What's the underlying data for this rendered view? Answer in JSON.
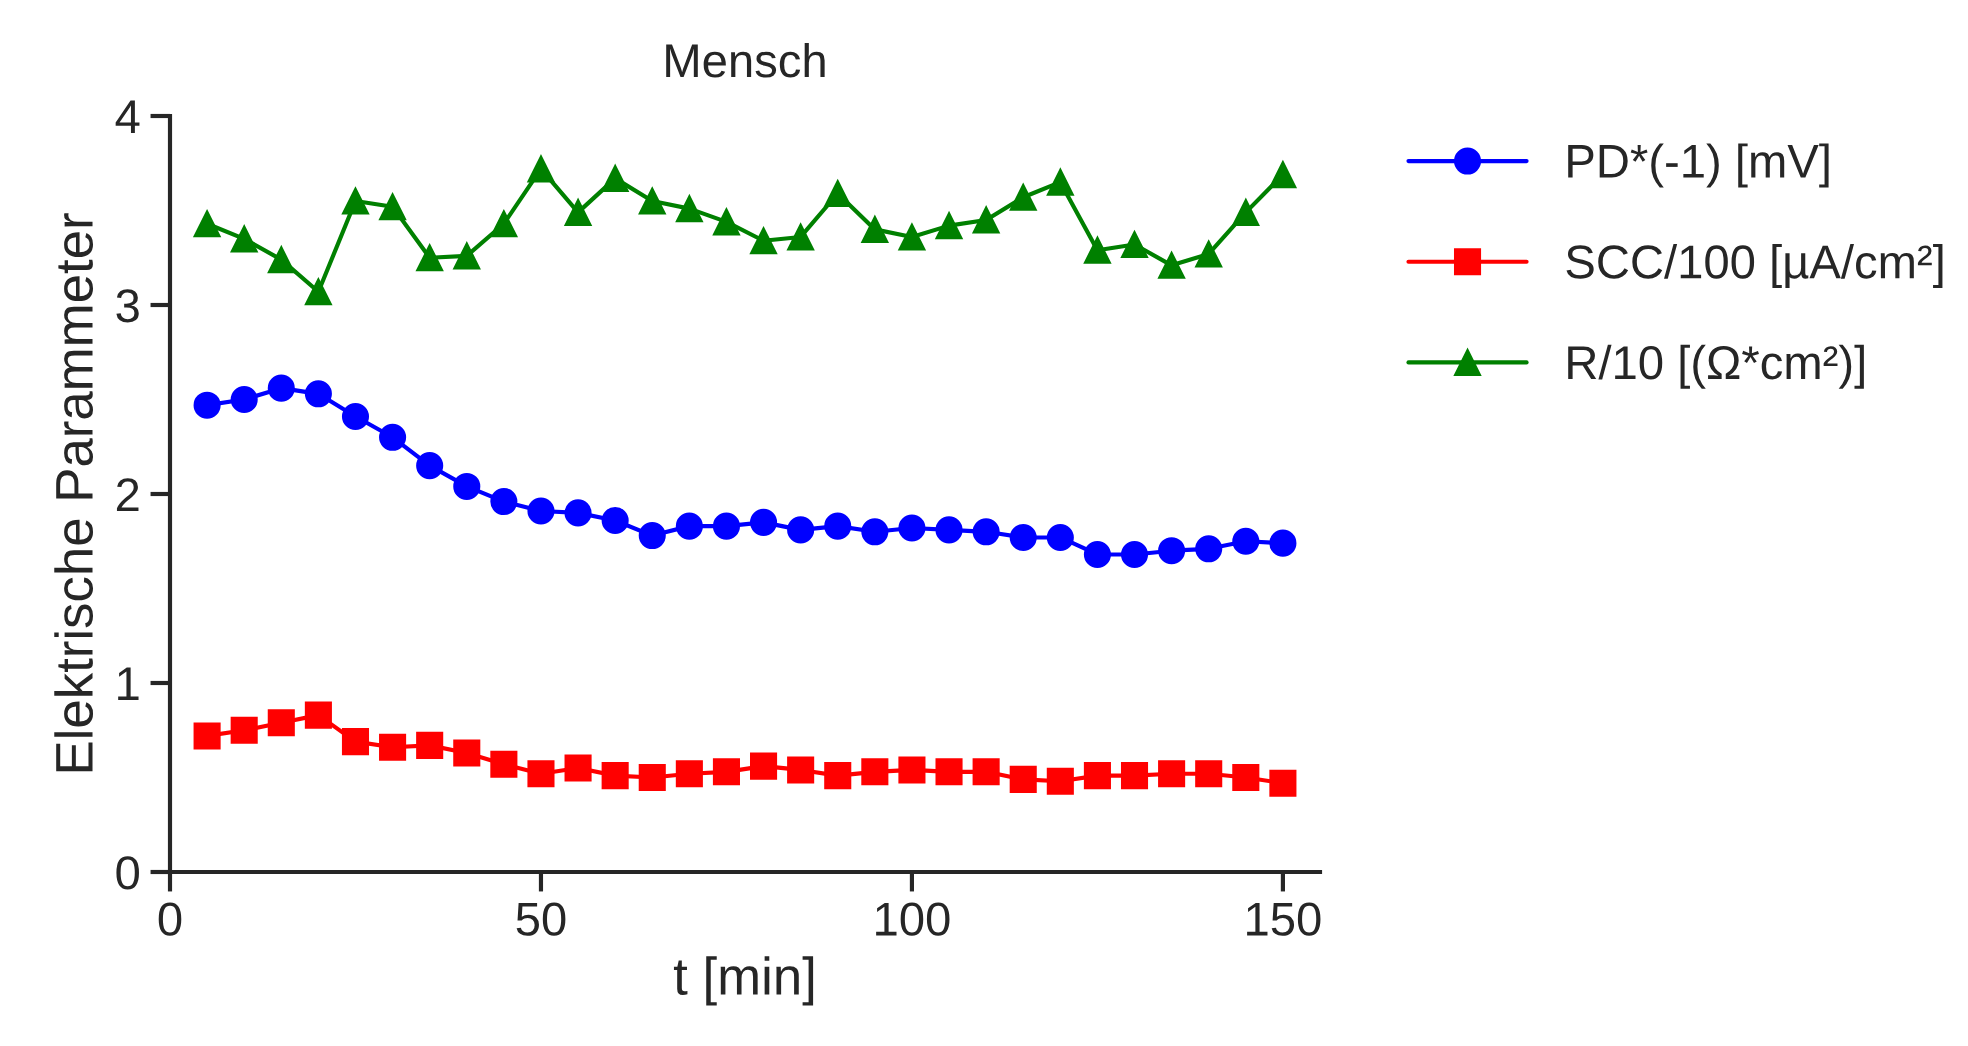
{
  "chart_data": {
    "type": "line",
    "title": "Mensch",
    "xlabel": "t [min]",
    "ylabel": "Elektrische Parammeter",
    "x": [
      5,
      10,
      15,
      20,
      25,
      30,
      35,
      40,
      45,
      50,
      55,
      60,
      65,
      70,
      75,
      80,
      85,
      90,
      95,
      100,
      105,
      110,
      115,
      120,
      125,
      130,
      135,
      140,
      145,
      150
    ],
    "series": [
      {
        "name": "PD*(-1) [mV]",
        "color": "#0000ff",
        "marker": "circle",
        "values": [
          2.47,
          2.5,
          2.56,
          2.53,
          2.41,
          2.3,
          2.15,
          2.04,
          1.96,
          1.91,
          1.9,
          1.86,
          1.78,
          1.83,
          1.83,
          1.85,
          1.81,
          1.83,
          1.8,
          1.82,
          1.81,
          1.8,
          1.77,
          1.77,
          1.68,
          1.68,
          1.7,
          1.71,
          1.75,
          1.74
        ]
      },
      {
        "name": "SCC/100 [µA/cm²]",
        "color": "#ff0000",
        "marker": "square",
        "values": [
          0.72,
          0.75,
          0.79,
          0.83,
          0.69,
          0.66,
          0.67,
          0.63,
          0.57,
          0.52,
          0.55,
          0.51,
          0.5,
          0.52,
          0.53,
          0.56,
          0.54,
          0.51,
          0.53,
          0.54,
          0.53,
          0.53,
          0.49,
          0.48,
          0.51,
          0.51,
          0.52,
          0.52,
          0.5,
          0.47
        ]
      },
      {
        "name": "R/10 [(Ω*cm²)]",
        "color": "#008000",
        "marker": "triangle",
        "values": [
          3.43,
          3.35,
          3.24,
          3.07,
          3.55,
          3.52,
          3.25,
          3.26,
          3.43,
          3.72,
          3.49,
          3.67,
          3.55,
          3.51,
          3.44,
          3.34,
          3.36,
          3.59,
          3.4,
          3.36,
          3.42,
          3.45,
          3.57,
          3.65,
          3.29,
          3.32,
          3.21,
          3.27,
          3.49,
          3.69
        ]
      }
    ],
    "xlim": [
      0,
      155
    ],
    "xticks": [
      0,
      50,
      100,
      150
    ],
    "ylim": [
      0,
      4
    ],
    "yticks": [
      0,
      1,
      2,
      3,
      4
    ],
    "grid": false,
    "legend": "right",
    "line_style": "solid"
  }
}
